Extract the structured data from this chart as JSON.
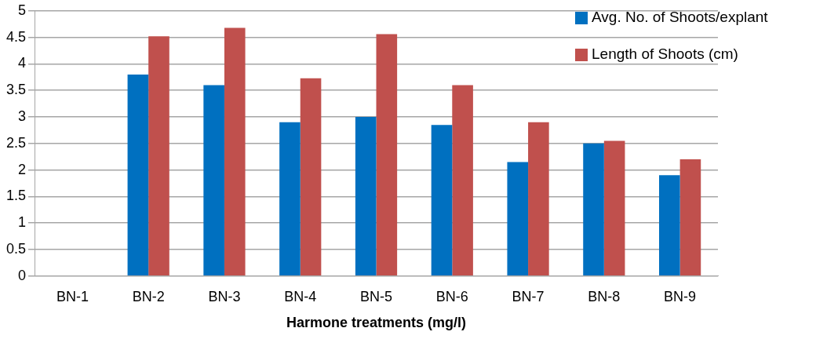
{
  "chart_data": {
    "type": "bar",
    "xlabel": "Harmone treatments (mg/l)",
    "categories": [
      "BN-1",
      "BN-2",
      "BN-3",
      "BN-4",
      "BN-5",
      "BN-6",
      "BN-7",
      "BN-8",
      "BN-9"
    ],
    "series": [
      {
        "name": "Avg. No. of Shoots/explant",
        "color": "#0070c0",
        "values": [
          0,
          3.8,
          3.6,
          2.9,
          3.0,
          2.85,
          2.15,
          2.5,
          1.9
        ]
      },
      {
        "name": "Length of Shoots (cm)",
        "color": "#c0504d",
        "values": [
          0,
          4.52,
          4.68,
          3.73,
          4.56,
          3.6,
          2.9,
          2.55,
          2.2
        ]
      }
    ],
    "ylim": [
      0,
      5
    ],
    "yticks": [
      0,
      0.5,
      1,
      1.5,
      2,
      2.5,
      3,
      3.5,
      4,
      4.5,
      5
    ],
    "grid": "y",
    "legend": "top right"
  }
}
